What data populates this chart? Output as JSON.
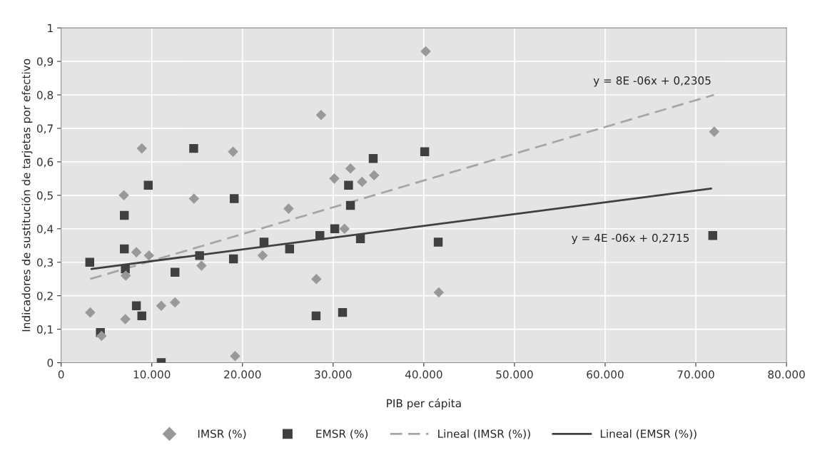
{
  "chart_data": {
    "type": "scatter",
    "xlabel": "PIB per cápita",
    "ylabel": "Indicadores de sustitución de tarjetas por efectivo",
    "xlim": [
      0,
      80000
    ],
    "ylim": [
      0,
      1
    ],
    "xticks": [
      0,
      {
        "value": 10000,
        "label": "10.000"
      },
      {
        "value": 20000,
        "label": "20.000"
      },
      {
        "value": 30000,
        "label": "30.000"
      },
      {
        "value": 40000,
        "label": "40.000"
      },
      {
        "value": 50000,
        "label": "50.000"
      },
      {
        "value": 60000,
        "label": "60.000"
      },
      {
        "value": 70000,
        "label": "70.000"
      },
      {
        "value": 80000,
        "label": "80.000"
      }
    ],
    "yticks": [
      0,
      {
        "value": 0.1,
        "label": "0,1"
      },
      {
        "value": 0.2,
        "label": "0,2"
      },
      {
        "value": 0.3,
        "label": "0,3"
      },
      {
        "value": 0.4,
        "label": "0,4"
      },
      {
        "value": 0.5,
        "label": "0,5"
      },
      {
        "value": 0.6,
        "label": "0,6"
      },
      {
        "value": 0.7,
        "label": "0,7"
      },
      {
        "value": 0.8,
        "label": "0,8"
      },
      {
        "value": 0.9,
        "label": "0,9"
      },
      1
    ],
    "grid": true,
    "legend": "bottom",
    "series": [
      {
        "name": "IMSR (%)",
        "marker": "diamond",
        "color": "#999999",
        "x": [
          3210,
          4460,
          6920,
          7130,
          7080,
          8300,
          8900,
          9690,
          11040,
          12560,
          14650,
          15480,
          18960,
          19190,
          22220,
          25090,
          28150,
          28670,
          30130,
          31910,
          31250,
          33190,
          34520,
          40210,
          41650,
          72030
        ],
        "values": [
          0.15,
          0.08,
          0.5,
          0.26,
          0.13,
          0.33,
          0.64,
          0.32,
          0.17,
          0.18,
          0.49,
          0.29,
          0.63,
          0.02,
          0.32,
          0.46,
          0.25,
          0.74,
          0.55,
          0.58,
          0.4,
          0.54,
          0.56,
          0.93,
          0.21,
          0.69
        ]
      },
      {
        "name": "EMSR (%)",
        "marker": "square",
        "color": "#404040",
        "x": [
          3160,
          4330,
          6970,
          6970,
          7080,
          8300,
          8900,
          9610,
          11040,
          12560,
          14620,
          15270,
          19010,
          19090,
          22380,
          25200,
          28120,
          28540,
          30180,
          31040,
          31700,
          31910,
          33010,
          34420,
          40100,
          41590,
          71870
        ],
        "values": [
          0.3,
          0.09,
          0.44,
          0.34,
          0.28,
          0.17,
          0.14,
          0.53,
          0.0,
          0.27,
          0.64,
          0.32,
          0.31,
          0.49,
          0.36,
          0.34,
          0.14,
          0.38,
          0.4,
          0.15,
          0.53,
          0.47,
          0.37,
          0.61,
          0.63,
          0.36,
          0.38
        ]
      },
      {
        "name": "Lineal (IMSR (%))",
        "type": "line",
        "line_style": "dashed",
        "color": "#a6a6a6",
        "x": [
          3210,
          72000
        ],
        "values": [
          0.25,
          0.8
        ]
      },
      {
        "name": "Lineal (EMSR (%))",
        "type": "line",
        "line_style": "solid",
        "color": "#404040",
        "x": [
          3340,
          71700
        ],
        "values": [
          0.28,
          0.52
        ]
      }
    ],
    "annotations": [
      "y = 8E -06x + 0,2305",
      "y = 4E -06x + 0,2715"
    ]
  }
}
